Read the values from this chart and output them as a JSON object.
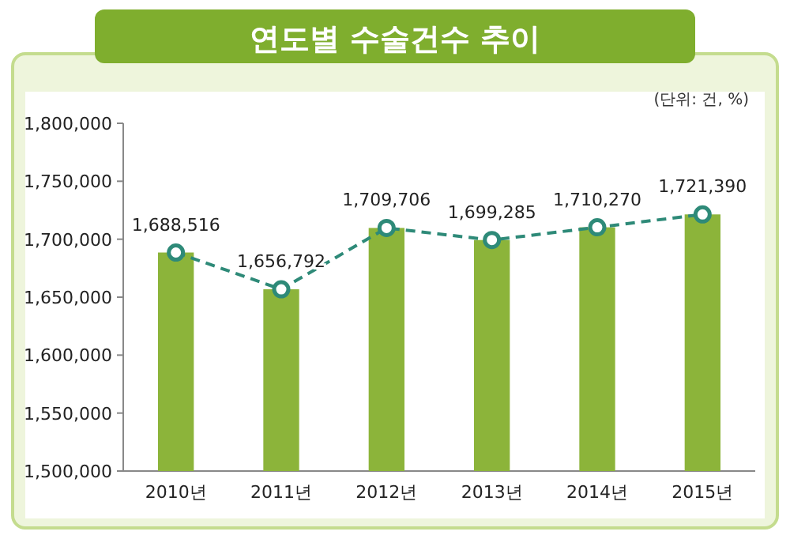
{
  "chart_data": {
    "type": "bar",
    "title": "연도별 수술건수 추이",
    "annotations": [
      "(단위: 건, %)"
    ],
    "categories": [
      "2010년",
      "2011년",
      "2012년",
      "2013년",
      "2014년",
      "2015년"
    ],
    "series": [
      {
        "color": "#8cb43a",
        "values": [
          1688516,
          1656792,
          1709706,
          1699285,
          1710270,
          1721390
        ],
        "value_labels": [
          "1,688,516",
          "1,656,792",
          "1,709,706",
          "1,699,285",
          "1,710,270",
          "1,721,390"
        ]
      },
      {
        "type": "line",
        "color": "#2e8a78",
        "values": [
          1688516,
          1656792,
          1709706,
          1699285,
          1710270,
          1721390
        ]
      }
    ],
    "marker": "circle",
    "line_style": "dashed",
    "ylim": [
      1500000,
      1800000
    ],
    "yticks": [
      {
        "value": 1500000,
        "label": "1,500,000"
      },
      {
        "value": 1550000,
        "label": "1,550,000"
      },
      {
        "value": 1600000,
        "label": "1,600,000"
      },
      {
        "value": 1650000,
        "label": "1,650,000"
      },
      {
        "value": 1700000,
        "label": "1,700,000"
      },
      {
        "value": 1750000,
        "label": "1,750,000"
      },
      {
        "value": 1800000,
        "label": "1,800,000"
      }
    ]
  }
}
